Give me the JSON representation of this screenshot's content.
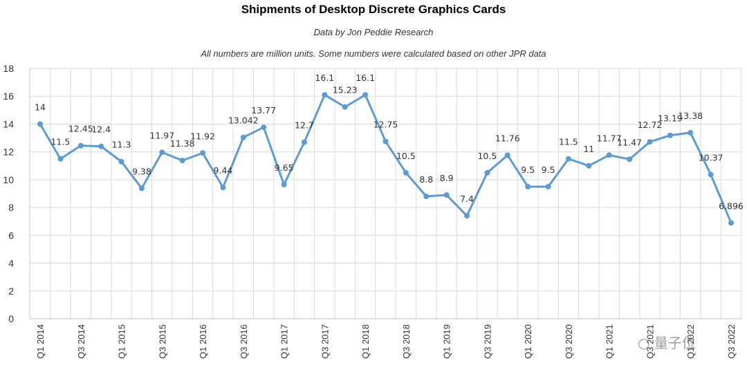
{
  "chart_data": {
    "type": "line",
    "title": "Shipments of Desktop Discrete Graphics Cards",
    "subtitle": "Data by Jon Peddie Research",
    "note": "All numbers are million units. Some numbers were calculated based on other JPR data",
    "xlabel": "",
    "ylabel": "",
    "ylim": [
      0,
      18
    ],
    "yticks": [
      0,
      2,
      4,
      6,
      8,
      10,
      12,
      14,
      16,
      18
    ],
    "grid": true,
    "color": "#5b9bd5",
    "x": [
      "Q1 2014",
      "Q2 2014",
      "Q3 2014",
      "Q4 2014",
      "Q1 2015",
      "Q2 2015",
      "Q3 2015",
      "Q4 2015",
      "Q1 2016",
      "Q2 2016",
      "Q3 2016",
      "Q4 2016",
      "Q1 2017",
      "Q2 2017",
      "Q3 2017",
      "Q4 2017",
      "Q1 2018",
      "Q2 2018",
      "Q3 2018",
      "Q4 2018",
      "Q1 2019",
      "Q2 2019",
      "Q3 2019",
      "Q4 2019",
      "Q1 2020",
      "Q2 2020",
      "Q3 2020",
      "Q4 2020",
      "Q1 2021",
      "Q2 2021",
      "Q3 2021",
      "Q4 2021",
      "Q1 2022",
      "Q2 2022",
      "Q3 2022"
    ],
    "x_tick_labels": [
      "Q1 2014",
      "",
      "Q3 2014",
      "",
      "Q1 2015",
      "",
      "Q3 2015",
      "",
      "Q1 2016",
      "",
      "Q3 2016",
      "",
      "Q1 2017",
      "",
      "Q3 2017",
      "",
      "Q1 2018",
      "",
      "Q3 2018",
      "",
      "Q1 2019",
      "",
      "Q3 2019",
      "",
      "Q1 2020",
      "",
      "Q3 2020",
      "",
      "Q1 2021",
      "",
      "Q3 2021",
      "",
      "Q1 2022",
      "",
      "Q3 2022"
    ],
    "values": [
      14,
      11.5,
      12.45,
      12.4,
      11.3,
      9.38,
      11.97,
      11.38,
      11.92,
      9.44,
      13.042,
      13.77,
      9.65,
      12.7,
      16.1,
      15.23,
      16.1,
      12.75,
      10.5,
      8.8,
      8.9,
      7.4,
      10.5,
      11.76,
      9.5,
      9.5,
      11.5,
      11,
      11.77,
      11.47,
      12.72,
      13.19,
      13.38,
      10.37,
      6.896
    ],
    "data_labels": [
      "14",
      "11.5",
      "12.45",
      "12.4",
      "11.3",
      "9.38",
      "11.97",
      "11.38",
      "11.92",
      "9.44",
      "13.042",
      "13.77",
      "9.65",
      "12.7",
      "16.1",
      "15.23",
      "16.1",
      "12.75",
      "10.5",
      "8.8",
      "8.9",
      "7.4",
      "10.5",
      "11.76",
      "9.5",
      "9.5",
      "11.5",
      "11",
      "11.77",
      "11.47",
      "12.72",
      "13.19",
      "13.38",
      "10.37",
      "6.896"
    ]
  },
  "watermark": {
    "text": "量子位",
    "icon": "wechat-icon"
  }
}
